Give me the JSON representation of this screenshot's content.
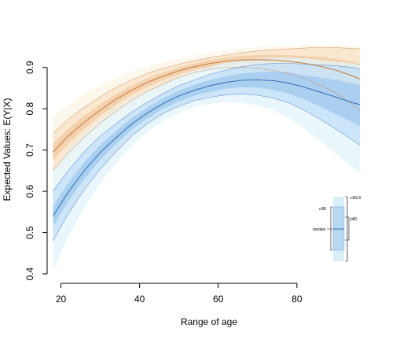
{
  "chart_data": {
    "type": "line",
    "xlabel": "Range of age",
    "ylabel": "Expected Values: E(Y|X)",
    "xlim": [
      17.5,
      96
    ],
    "ylim": [
      0.4,
      0.93
    ],
    "x_ticks": [
      20,
      40,
      60,
      80
    ],
    "y_ticks": [
      0.4,
      0.5,
      0.6,
      0.7,
      0.8,
      0.9
    ],
    "grid": false,
    "series": [
      {
        "color": "#c8804a",
        "fill_inner": "#f2c9a2",
        "fill_mid": "#f8e3c8",
        "fill_outer": "#fcf4e6",
        "x": [
          18,
          22,
          26,
          30,
          34,
          38,
          42,
          46,
          50,
          54,
          58,
          62,
          66,
          70,
          74,
          78,
          82,
          86,
          90,
          94,
          96
        ],
        "median": [
          0.695,
          0.735,
          0.768,
          0.797,
          0.823,
          0.845,
          0.864,
          0.879,
          0.892,
          0.902,
          0.91,
          0.915,
          0.918,
          0.919,
          0.918,
          0.915,
          0.91,
          0.903,
          0.893,
          0.88,
          0.872
        ],
        "p80": [
          [
            0.675,
            0.715
          ],
          [
            0.717,
            0.753
          ],
          [
            0.752,
            0.784
          ],
          [
            0.783,
            0.811
          ],
          [
            0.81,
            0.836
          ],
          [
            0.834,
            0.856
          ],
          [
            0.854,
            0.874
          ],
          [
            0.87,
            0.888
          ],
          [
            0.884,
            0.9
          ],
          [
            0.894,
            0.91
          ],
          [
            0.902,
            0.918
          ],
          [
            0.906,
            0.924
          ],
          [
            0.908,
            0.928
          ],
          [
            0.908,
            0.93
          ],
          [
            0.905,
            0.931
          ],
          [
            0.9,
            0.93
          ],
          [
            0.892,
            0.928
          ],
          [
            0.88,
            0.926
          ],
          [
            0.865,
            0.921
          ],
          [
            0.845,
            0.915
          ],
          [
            0.835,
            0.909
          ]
        ],
        "ci95": [
          [
            0.65,
            0.74
          ],
          [
            0.694,
            0.776
          ],
          [
            0.732,
            0.804
          ],
          [
            0.765,
            0.829
          ],
          [
            0.794,
            0.852
          ],
          [
            0.82,
            0.87
          ],
          [
            0.842,
            0.886
          ],
          [
            0.86,
            0.898
          ],
          [
            0.876,
            0.908
          ],
          [
            0.888,
            0.916
          ],
          [
            0.896,
            0.924
          ],
          [
            0.9,
            0.93
          ],
          [
            0.9,
            0.936
          ],
          [
            0.898,
            0.94
          ],
          [
            0.893,
            0.943
          ],
          [
            0.885,
            0.945
          ],
          [
            0.873,
            0.947
          ],
          [
            0.857,
            0.949
          ],
          [
            0.838,
            0.948
          ],
          [
            0.812,
            0.946
          ],
          [
            0.795,
            0.945
          ]
        ],
        "ci999": [
          [
            0.61,
            0.78
          ],
          [
            0.66,
            0.81
          ],
          [
            0.7,
            0.836
          ],
          [
            0.738,
            0.856
          ],
          [
            0.77,
            0.874
          ],
          [
            0.8,
            0.89
          ],
          [
            0.826,
            0.902
          ],
          [
            0.846,
            0.912
          ],
          [
            0.864,
            0.922
          ],
          [
            0.876,
            0.93
          ],
          [
            0.884,
            0.936
          ],
          [
            0.886,
            0.942
          ],
          [
            0.884,
            0.946
          ],
          [
            0.878,
            0.949
          ],
          [
            0.868,
            0.951
          ],
          [
            0.855,
            0.952
          ],
          [
            0.836,
            0.953
          ],
          [
            0.812,
            0.954
          ],
          [
            0.785,
            0.954
          ],
          [
            0.752,
            0.953
          ],
          [
            0.735,
            0.952
          ]
        ]
      },
      {
        "color": "#3f72b5",
        "fill_inner": "#9fc8ee",
        "fill_mid": "#c4e0f6",
        "fill_outer": "#e2f4fb",
        "x": [
          18,
          22,
          26,
          30,
          34,
          38,
          42,
          46,
          50,
          54,
          58,
          62,
          66,
          70,
          74,
          78,
          82,
          86,
          90,
          94,
          96
        ],
        "median": [
          0.54,
          0.6,
          0.651,
          0.694,
          0.73,
          0.763,
          0.79,
          0.813,
          0.831,
          0.845,
          0.856,
          0.864,
          0.869,
          0.87,
          0.868,
          0.862,
          0.852,
          0.84,
          0.828,
          0.815,
          0.81
        ],
        "p80": [
          [
            0.515,
            0.565
          ],
          [
            0.578,
            0.622
          ],
          [
            0.631,
            0.671
          ],
          [
            0.676,
            0.712
          ],
          [
            0.714,
            0.746
          ],
          [
            0.749,
            0.777
          ],
          [
            0.777,
            0.803
          ],
          [
            0.8,
            0.826
          ],
          [
            0.818,
            0.844
          ],
          [
            0.832,
            0.858
          ],
          [
            0.842,
            0.87
          ],
          [
            0.849,
            0.879
          ],
          [
            0.852,
            0.886
          ],
          [
            0.851,
            0.889
          ],
          [
            0.846,
            0.89
          ],
          [
            0.836,
            0.888
          ],
          [
            0.822,
            0.882
          ],
          [
            0.805,
            0.875
          ],
          [
            0.786,
            0.87
          ],
          [
            0.768,
            0.862
          ],
          [
            0.758,
            0.857
          ]
        ],
        "ci95": [
          [
            0.48,
            0.6
          ],
          [
            0.548,
            0.652
          ],
          [
            0.605,
            0.697
          ],
          [
            0.654,
            0.734
          ],
          [
            0.696,
            0.764
          ],
          [
            0.734,
            0.792
          ],
          [
            0.764,
            0.816
          ],
          [
            0.789,
            0.837
          ],
          [
            0.806,
            0.856
          ],
          [
            0.82,
            0.87
          ],
          [
            0.828,
            0.884
          ],
          [
            0.834,
            0.894
          ],
          [
            0.836,
            0.902
          ],
          [
            0.833,
            0.907
          ],
          [
            0.826,
            0.91
          ],
          [
            0.814,
            0.91
          ],
          [
            0.796,
            0.908
          ],
          [
            0.774,
            0.906
          ],
          [
            0.75,
            0.904
          ],
          [
            0.725,
            0.9
          ],
          [
            0.712,
            0.896
          ]
        ],
        "ci999": [
          [
            0.41,
            0.65
          ],
          [
            0.492,
            0.7
          ],
          [
            0.562,
            0.74
          ],
          [
            0.62,
            0.772
          ],
          [
            0.668,
            0.8
          ],
          [
            0.71,
            0.824
          ],
          [
            0.744,
            0.844
          ],
          [
            0.77,
            0.862
          ],
          [
            0.79,
            0.878
          ],
          [
            0.804,
            0.892
          ],
          [
            0.812,
            0.902
          ],
          [
            0.816,
            0.912
          ],
          [
            0.814,
            0.918
          ],
          [
            0.808,
            0.922
          ],
          [
            0.796,
            0.924
          ],
          [
            0.778,
            0.924
          ],
          [
            0.752,
            0.922
          ],
          [
            0.722,
            0.918
          ],
          [
            0.69,
            0.914
          ],
          [
            0.66,
            0.91
          ],
          [
            0.645,
            0.906
          ]
        ]
      }
    ],
    "legend": {
      "ci95": "ci95",
      "ci999": "ci99.9",
      "median": "median",
      "p80": "p80"
    }
  }
}
